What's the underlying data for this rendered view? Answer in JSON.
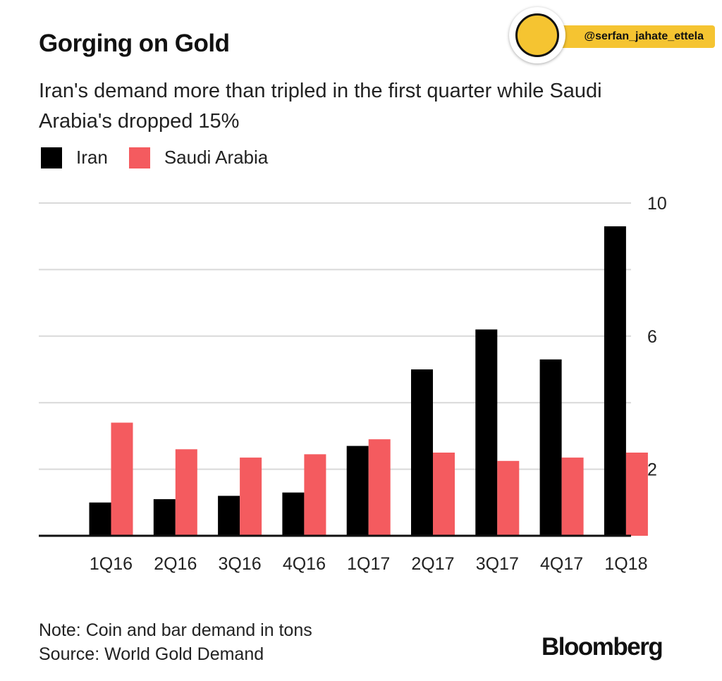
{
  "watermark": {
    "handle": "@serfan_jahate_ettela"
  },
  "chart_data": {
    "type": "bar",
    "title": "Gorging on Gold",
    "subtitle": "Iran's demand more than tripled in the first quarter while Saudi Arabia's dropped 15%",
    "categories": [
      "1Q16",
      "2Q16",
      "3Q16",
      "4Q16",
      "1Q17",
      "2Q17",
      "3Q17",
      "4Q17",
      "1Q18"
    ],
    "series": [
      {
        "name": "Iran",
        "color": "#000000",
        "values": [
          1.0,
          1.1,
          1.2,
          1.3,
          2.7,
          5.0,
          6.2,
          5.3,
          9.3
        ]
      },
      {
        "name": "Saudi Arabia",
        "color": "#f45b5f",
        "values": [
          3.4,
          2.6,
          2.35,
          2.45,
          2.9,
          2.5,
          2.25,
          2.35,
          2.5
        ]
      }
    ],
    "ylim": [
      0,
      10
    ],
    "yticks": [
      2,
      6,
      10
    ],
    "grid": true,
    "legend": "top-left",
    "note": "Note: Coin and bar demand in tons",
    "source": "Source: World Gold Demand"
  },
  "branding": {
    "logo_text": "Bloomberg"
  }
}
